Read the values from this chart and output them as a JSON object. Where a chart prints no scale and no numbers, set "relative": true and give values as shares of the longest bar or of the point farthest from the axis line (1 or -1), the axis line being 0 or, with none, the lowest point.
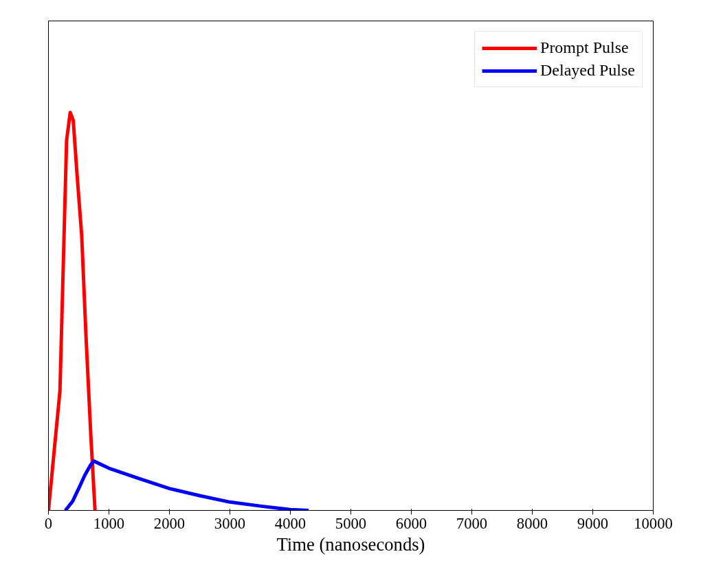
{
  "chart_data": {
    "type": "line",
    "xlabel": "Time (nanoseconds)",
    "relative": true,
    "xlim": [
      0,
      10000
    ],
    "xticks": [
      0,
      1000,
      2000,
      3000,
      4000,
      5000,
      6000,
      7000,
      8000,
      9000,
      10000
    ],
    "grid": false,
    "legend": "top right",
    "marker": "none",
    "line_style": "solid",
    "series": [
      {
        "name": "Prompt Pulse",
        "color": "#ff0000",
        "x": [
          0,
          190,
          270,
          300,
          360,
          410,
          470,
          550,
          620,
          700,
          770
        ],
        "values": [
          0,
          0.3,
          0.76,
          0.93,
          1,
          0.98,
          0.85,
          0.69,
          0.44,
          0.19,
          0
        ]
      },
      {
        "name": "Delayed Pulse",
        "color": "#0000ff",
        "x": [
          280,
          400,
          500,
          600,
          700,
          750,
          1000,
          1500,
          2000,
          2500,
          3000,
          3500,
          4000,
          4300
        ],
        "values": [
          0,
          0.023,
          0.055,
          0.088,
          0.115,
          0.124,
          0.106,
          0.08,
          0.055,
          0.037,
          0.021,
          0.011,
          0.002,
          0
        ]
      }
    ]
  }
}
